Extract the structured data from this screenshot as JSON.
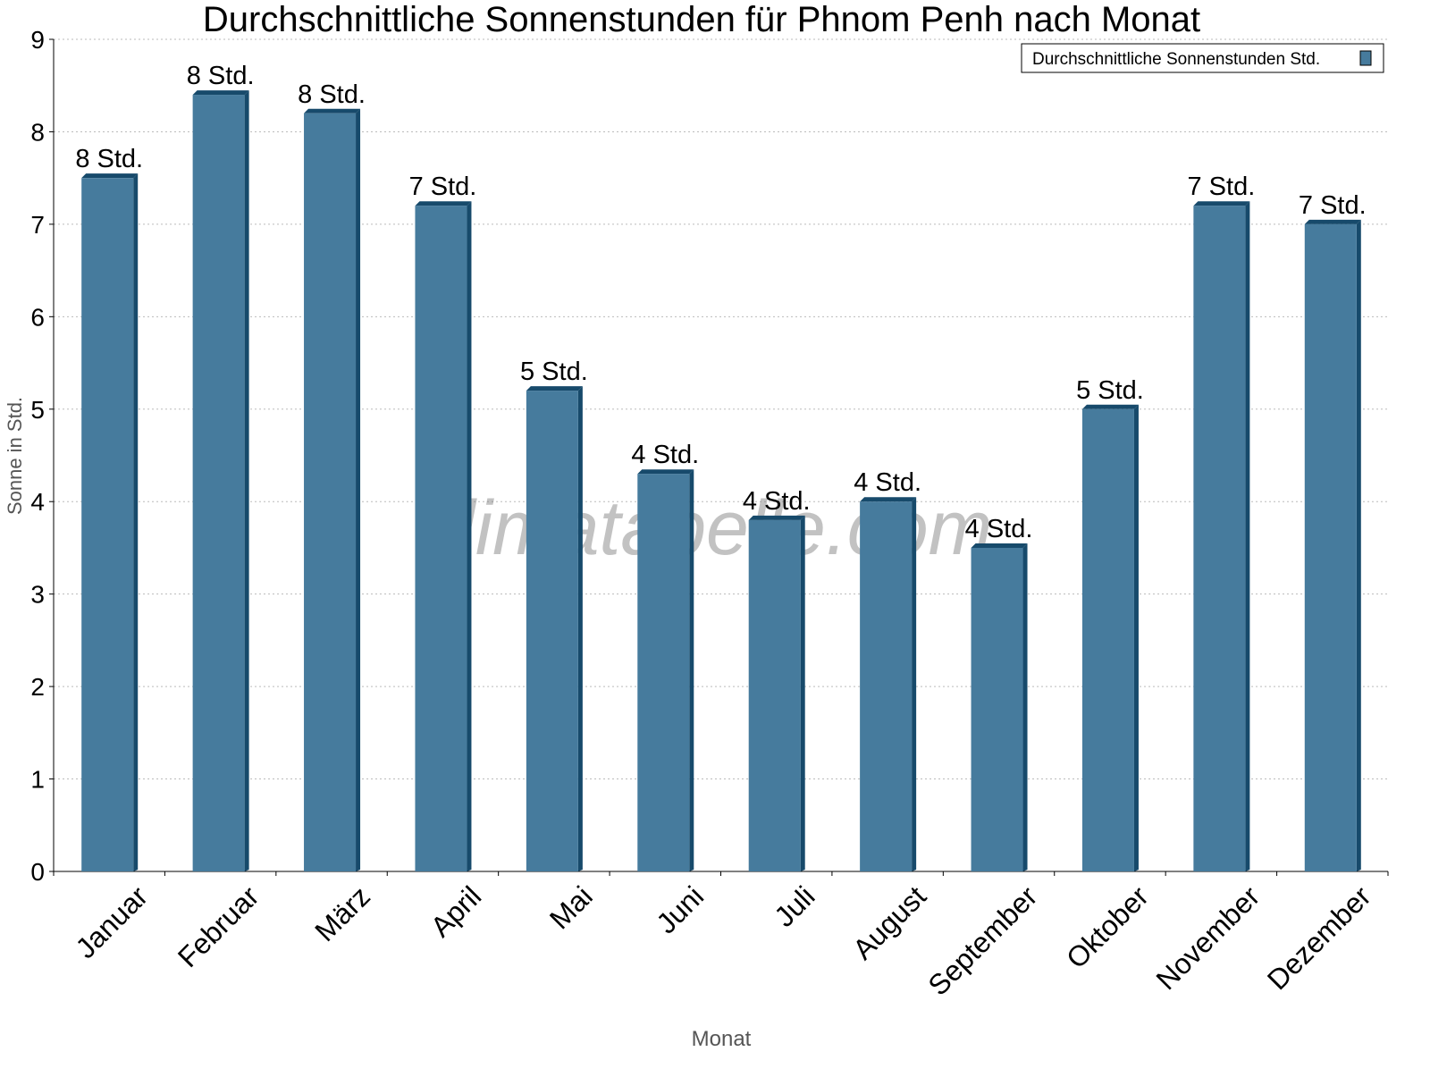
{
  "chart_data": {
    "type": "bar",
    "title": "Durchschnittliche Sonnenstunden für Phnom Penh nach Monat",
    "xlabel": "Monat",
    "ylabel": "Sonne in Std.",
    "ylim": [
      0,
      9
    ],
    "yticks": [
      0,
      1,
      2,
      3,
      4,
      5,
      6,
      7,
      8,
      9
    ],
    "grid": true,
    "legend_position": "top-right",
    "categories": [
      "Januar",
      "Februar",
      "März",
      "April",
      "Mai",
      "Juni",
      "Juli",
      "August",
      "September",
      "Oktober",
      "November",
      "Dezember"
    ],
    "series": [
      {
        "name": "Durchschnittliche Sonnenstunden Std.",
        "values": [
          7.5,
          8.4,
          8.2,
          7.2,
          5.2,
          4.3,
          3.8,
          4.0,
          3.5,
          5.0,
          7.2,
          7.0
        ],
        "labels": [
          "8 Std.",
          "8 Std.",
          "8 Std.",
          "7 Std.",
          "5 Std.",
          "4 Std.",
          "4 Std.",
          "4 Std.",
          "4 Std.",
          "5 Std.",
          "7 Std.",
          "7 Std."
        ]
      }
    ],
    "colors": {
      "bar": "#467b9d",
      "bar_side": "#174a6b"
    },
    "watermark": "klimatabelle.com"
  }
}
